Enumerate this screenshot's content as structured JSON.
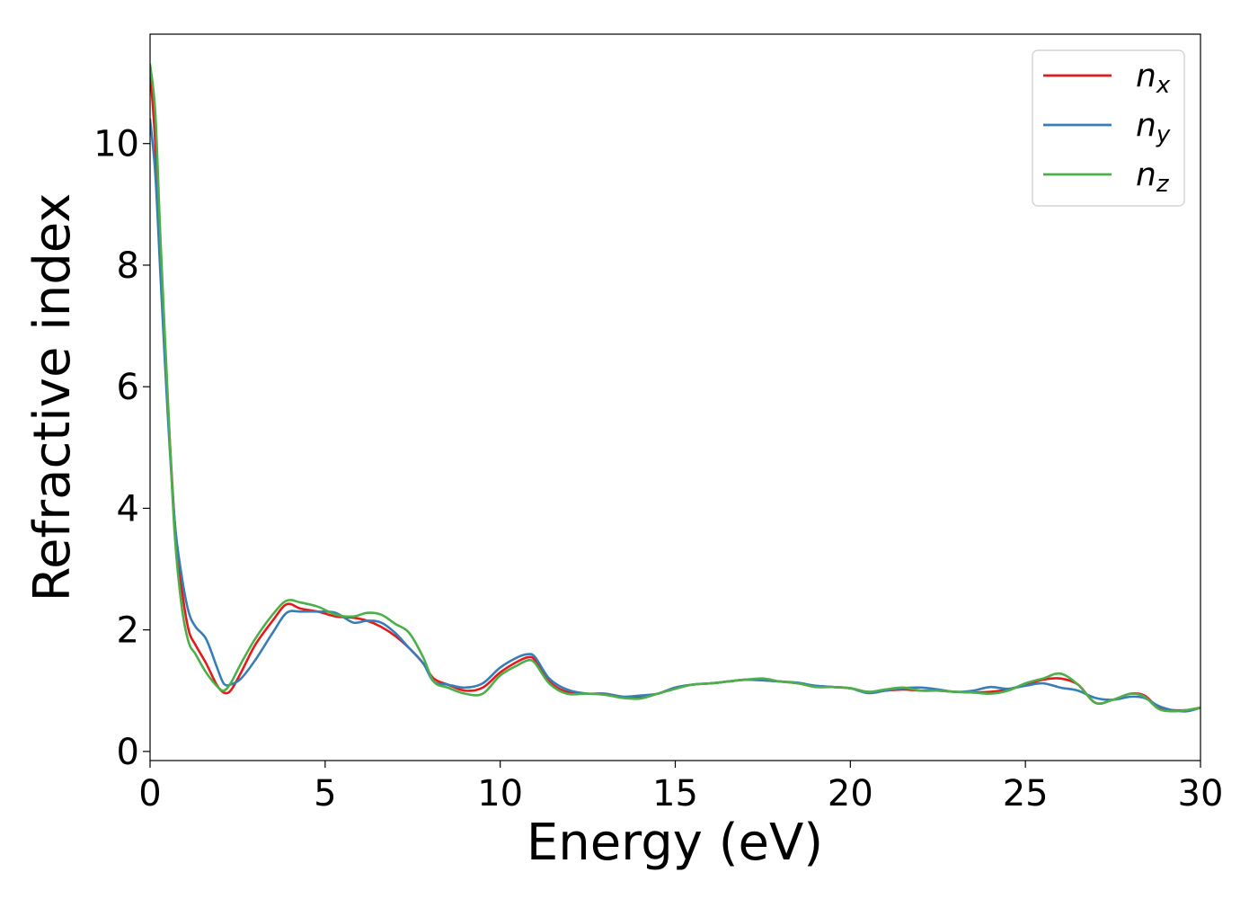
{
  "chart_data": {
    "type": "line",
    "title": "",
    "xlabel": "Energy (eV)",
    "ylabel": "Refractive index",
    "xlim": [
      0,
      30
    ],
    "ylim": [
      -0.15,
      11.8
    ],
    "xticks": [
      0,
      5,
      10,
      15,
      20,
      25,
      30
    ],
    "yticks": [
      0,
      2,
      4,
      6,
      8,
      10
    ],
    "grid": false,
    "legend_position": "top-right",
    "series": [
      {
        "name": "n",
        "subscript": "x",
        "color": "#e41a1c",
        "x": [
          0,
          0.15,
          0.3,
          0.5,
          0.7,
          0.9,
          1.1,
          1.3,
          1.6,
          1.9,
          2.1,
          2.3,
          2.6,
          3.0,
          3.5,
          3.9,
          4.3,
          4.8,
          5.3,
          5.8,
          6.2,
          6.6,
          7.0,
          7.4,
          7.8,
          8.1,
          8.5,
          9.0,
          9.5,
          10.0,
          10.5,
          10.8,
          11.0,
          11.4,
          11.9,
          12.5,
          13.0,
          13.5,
          14.0,
          14.5,
          15.0,
          15.5,
          16.0,
          16.5,
          17.0,
          17.5,
          18.0,
          18.5,
          19.0,
          19.5,
          20.0,
          20.5,
          21.0,
          21.5,
          22.0,
          22.5,
          23.0,
          23.5,
          24.0,
          24.5,
          25.0,
          25.5,
          26.0,
          26.5,
          27.0,
          27.5,
          28.0,
          28.4,
          28.8,
          29.2,
          29.6,
          30.0
        ],
        "y": [
          11.2,
          10.0,
          8.0,
          5.8,
          3.8,
          2.7,
          2.0,
          1.75,
          1.45,
          1.1,
          0.97,
          1.0,
          1.3,
          1.75,
          2.15,
          2.42,
          2.35,
          2.3,
          2.22,
          2.2,
          2.15,
          2.05,
          1.9,
          1.7,
          1.45,
          1.2,
          1.1,
          1.0,
          1.05,
          1.3,
          1.48,
          1.55,
          1.5,
          1.15,
          0.98,
          0.95,
          0.95,
          0.9,
          0.9,
          0.95,
          1.05,
          1.1,
          1.12,
          1.15,
          1.18,
          1.17,
          1.15,
          1.12,
          1.08,
          1.06,
          1.04,
          0.98,
          1.0,
          1.02,
          1.0,
          1.0,
          0.98,
          0.97,
          0.98,
          1.02,
          1.1,
          1.18,
          1.2,
          1.1,
          0.8,
          0.85,
          0.95,
          0.92,
          0.72,
          0.68,
          0.68,
          0.72
        ]
      },
      {
        "name": "n",
        "subscript": "y",
        "color": "#377eb8",
        "x": [
          0,
          0.15,
          0.3,
          0.5,
          0.7,
          0.9,
          1.1,
          1.3,
          1.6,
          1.9,
          2.1,
          2.3,
          2.6,
          3.0,
          3.5,
          3.9,
          4.3,
          4.8,
          5.3,
          5.8,
          6.2,
          6.6,
          7.0,
          7.4,
          7.8,
          8.1,
          8.5,
          9.0,
          9.5,
          10.0,
          10.5,
          10.8,
          11.0,
          11.4,
          11.9,
          12.5,
          13.0,
          13.5,
          14.0,
          14.5,
          15.0,
          15.5,
          16.0,
          16.5,
          17.0,
          17.5,
          18.0,
          18.5,
          19.0,
          19.5,
          20.0,
          20.5,
          21.0,
          21.5,
          22.0,
          22.5,
          23.0,
          23.5,
          24.0,
          24.5,
          25.0,
          25.5,
          26.0,
          26.5,
          27.0,
          27.5,
          28.0,
          28.4,
          28.8,
          29.2,
          29.6,
          30.0
        ],
        "y": [
          10.4,
          9.5,
          7.8,
          5.6,
          3.8,
          2.9,
          2.3,
          2.05,
          1.85,
          1.4,
          1.12,
          1.1,
          1.2,
          1.5,
          1.95,
          2.28,
          2.3,
          2.3,
          2.28,
          2.12,
          2.15,
          2.12,
          1.95,
          1.7,
          1.45,
          1.15,
          1.1,
          1.05,
          1.12,
          1.38,
          1.55,
          1.6,
          1.55,
          1.2,
          1.02,
          0.95,
          0.95,
          0.9,
          0.92,
          0.95,
          1.05,
          1.1,
          1.12,
          1.15,
          1.18,
          1.17,
          1.15,
          1.13,
          1.08,
          1.06,
          1.04,
          0.96,
          1.0,
          1.04,
          1.05,
          1.02,
          0.98,
          1.0,
          1.06,
          1.03,
          1.08,
          1.12,
          1.05,
          1.0,
          0.88,
          0.85,
          0.9,
          0.88,
          0.75,
          0.68,
          0.66,
          0.72
        ]
      },
      {
        "name": "n",
        "subscript": "z",
        "color": "#4daf4a",
        "x": [
          0,
          0.15,
          0.3,
          0.5,
          0.7,
          0.9,
          1.1,
          1.3,
          1.6,
          1.9,
          2.1,
          2.3,
          2.6,
          3.0,
          3.5,
          3.9,
          4.3,
          4.8,
          5.3,
          5.8,
          6.2,
          6.6,
          7.0,
          7.4,
          7.8,
          8.1,
          8.5,
          9.0,
          9.5,
          10.0,
          10.5,
          10.8,
          11.0,
          11.4,
          11.9,
          12.5,
          13.0,
          13.5,
          14.0,
          14.5,
          15.0,
          15.5,
          16.0,
          16.5,
          17.0,
          17.5,
          18.0,
          18.5,
          19.0,
          19.5,
          20.0,
          20.5,
          21.0,
          21.5,
          22.0,
          22.5,
          23.0,
          23.5,
          24.0,
          24.5,
          25.0,
          25.5,
          26.0,
          26.5,
          27.0,
          27.5,
          28.0,
          28.4,
          28.8,
          29.2,
          29.6,
          30.0
        ],
        "y": [
          11.3,
          10.5,
          8.4,
          5.9,
          3.6,
          2.4,
          1.8,
          1.6,
          1.3,
          1.08,
          1.0,
          1.12,
          1.45,
          1.85,
          2.25,
          2.48,
          2.45,
          2.38,
          2.25,
          2.22,
          2.28,
          2.25,
          2.1,
          1.95,
          1.55,
          1.15,
          1.05,
          0.95,
          0.95,
          1.25,
          1.42,
          1.5,
          1.45,
          1.12,
          0.95,
          0.95,
          0.93,
          0.88,
          0.87,
          0.95,
          1.03,
          1.1,
          1.12,
          1.15,
          1.18,
          1.2,
          1.15,
          1.12,
          1.06,
          1.06,
          1.04,
          0.98,
          1.02,
          1.05,
          1.0,
          1.0,
          0.98,
          0.97,
          0.95,
          1.0,
          1.12,
          1.2,
          1.28,
          1.1,
          0.8,
          0.85,
          0.95,
          0.9,
          0.7,
          0.66,
          0.68,
          0.72
        ]
      }
    ]
  }
}
